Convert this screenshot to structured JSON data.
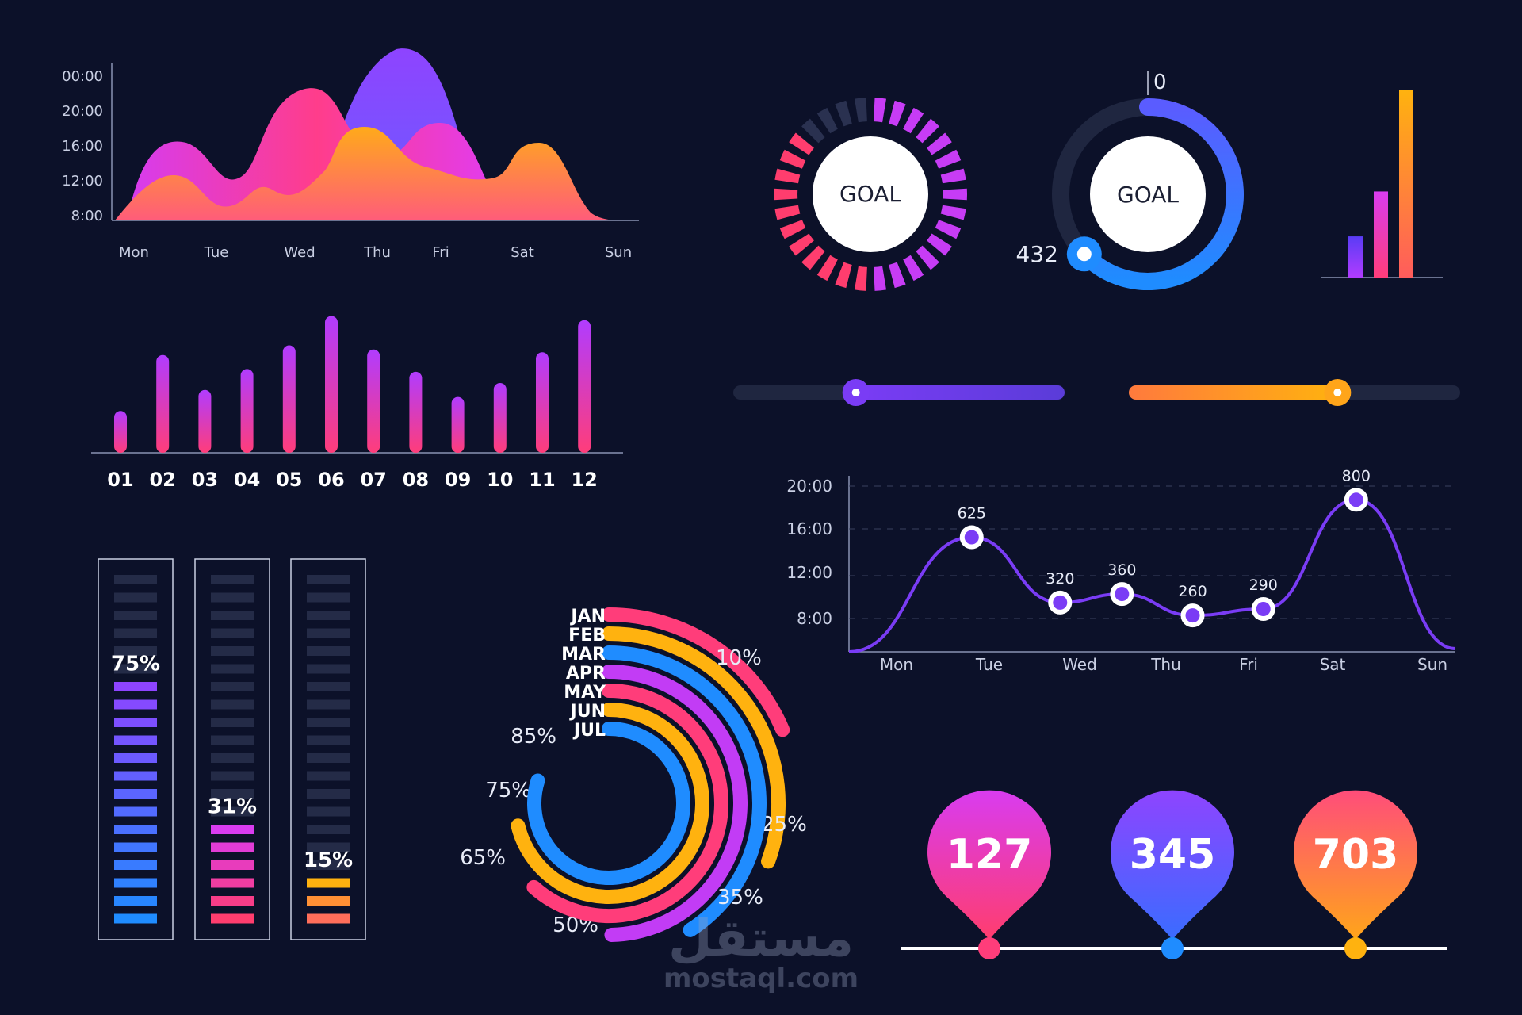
{
  "colors": {
    "background": "#0c1129",
    "pink": "#ff3d8b",
    "magenta": "#d93cf0",
    "purple": "#7a3cf5",
    "violet": "#8e44ff",
    "blue": "#1f8cff",
    "orange": "#ff8a3d",
    "yellow": "#ffb20f",
    "track": "#1f2640"
  },
  "watermark": {
    "arabic": "مستقل",
    "latin": "mostaql.com"
  },
  "chart_data": [
    {
      "id": "area-waves",
      "type": "area",
      "x": [
        "Mon",
        "Tue",
        "Wed",
        "Thu",
        "Fri",
        "Sat",
        "Sun"
      ],
      "y_ticks": [
        "00:00",
        "20:00",
        "16:00",
        "12:00",
        "8:00"
      ],
      "series": [
        {
          "color": "pink",
          "peaks": [
            0.55,
            0.95,
            0.55,
            0.7,
            0.6
          ]
        },
        {
          "color": "violet",
          "peaks": [
            1.0
          ]
        },
        {
          "color": "orange",
          "peaks": [
            0.3,
            0.2,
            0.55,
            0.4,
            0.55
          ]
        }
      ]
    },
    {
      "id": "monthly-bars",
      "type": "bar",
      "categories": [
        "01",
        "02",
        "03",
        "04",
        "05",
        "06",
        "07",
        "08",
        "09",
        "10",
        "11",
        "12"
      ],
      "values": [
        30,
        70,
        45,
        60,
        77,
        98,
        74,
        58,
        40,
        50,
        72,
        95
      ],
      "ylim": [
        0,
        100
      ]
    },
    {
      "id": "goal-segment-ring",
      "type": "pie",
      "center_label": "GOAL",
      "segments_total": 30,
      "segments_filled": 26
    },
    {
      "id": "goal-progress-ring",
      "type": "pie",
      "center_label": "GOAL",
      "start_label": "0",
      "current_label": "432",
      "progress": 0.63
    },
    {
      "id": "mini-bars",
      "type": "bar",
      "values": [
        22,
        46,
        100
      ],
      "colors": [
        "violet",
        "pink",
        "orange"
      ],
      "ylim": [
        0,
        100
      ]
    },
    {
      "id": "sliders",
      "type": "table",
      "values": [
        0.37,
        0.63
      ]
    },
    {
      "id": "points-line",
      "type": "line",
      "x": [
        "Mon",
        "Tue",
        "Wed",
        "Thu",
        "Fri",
        "Sat",
        "Sun"
      ],
      "y_ticks": [
        "20:00",
        "16:00",
        "12:00",
        "8:00"
      ],
      "points": [
        {
          "x": 1.85,
          "label": "625",
          "value": 625
        },
        {
          "x": 2.85,
          "label": "320",
          "value": 320
        },
        {
          "x": 3.55,
          "label": "360",
          "value": 360
        },
        {
          "x": 4.35,
          "label": "260",
          "value": 260
        },
        {
          "x": 5.15,
          "label": "290",
          "value": 290
        },
        {
          "x": 6.2,
          "label": "800",
          "value": 800
        }
      ],
      "grid": true
    },
    {
      "id": "level-meters",
      "type": "bar",
      "meters": [
        {
          "label": "75%",
          "value": 0.75,
          "color_top": "violet",
          "color_bottom": "blue"
        },
        {
          "label": "31%",
          "value": 0.31,
          "color_top": "magenta",
          "color_bottom": "pink"
        },
        {
          "label": "15%",
          "value": 0.15,
          "color_top": "yellow",
          "color_bottom": "orange"
        }
      ],
      "segments": 20
    },
    {
      "id": "radial-months",
      "type": "pie",
      "series": [
        {
          "name": "JAN",
          "color": "pink",
          "end_label": "10%"
        },
        {
          "name": "FEB",
          "color": "yellow",
          "end_label": "25%"
        },
        {
          "name": "MAR",
          "color": "blue",
          "end_label": "35%"
        },
        {
          "name": "APR",
          "color": "magenta",
          "end_label": "50%"
        },
        {
          "name": "MAY",
          "color": "pink",
          "end_label": "65%"
        },
        {
          "name": "JUN",
          "color": "yellow",
          "end_label": "75%"
        },
        {
          "name": "JUL",
          "color": "blue",
          "end_label": "85%"
        }
      ]
    },
    {
      "id": "location-pins",
      "type": "scatter",
      "pins": [
        {
          "value": "127",
          "color_top": "magenta",
          "color_bottom": "pink"
        },
        {
          "value": "345",
          "color_top": "violet",
          "color_bottom": "blue"
        },
        {
          "value": "703",
          "color_top": "pink",
          "color_bottom": "yellow"
        }
      ]
    }
  ]
}
